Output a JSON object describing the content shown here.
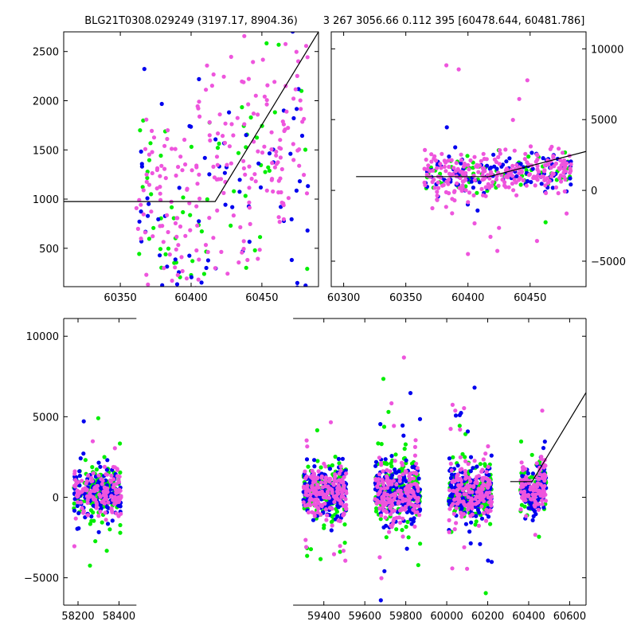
{
  "chart_data": [
    {
      "id": "top-left",
      "type": "scatter",
      "title": "BLG21T0308.029249 (3197.17, 8904.36)",
      "xlim": [
        60310,
        60490
      ],
      "ylim": [
        110,
        2700
      ],
      "xticks": [
        60350,
        60400,
        60450
      ],
      "yticks": [
        500,
        1000,
        1500,
        2000,
        2500
      ],
      "yaxis_side": "left",
      "model_line": [
        [
          60310,
          975
        ],
        [
          60417,
          975
        ],
        [
          60490,
          2700
        ]
      ],
      "series": [
        {
          "color": "#00ee00",
          "seed": 11,
          "count": 70
        },
        {
          "color": "#0000ee",
          "seed": 23,
          "count": 80
        },
        {
          "color": "#ee55dd",
          "seed": 37,
          "count": 230
        }
      ],
      "cloud": {
        "x_range": [
          60360,
          60483
        ],
        "y_base": 975,
        "y_break": 60417,
        "slope": 9.5,
        "spread": 650
      }
    },
    {
      "id": "top-right",
      "type": "scatter",
      "title": "3 267 3056.66 0.112 395 [60478.644, 60481.786]",
      "xlim": [
        60290,
        60495
      ],
      "ylim": [
        -6800,
        11200
      ],
      "xticks": [
        60300,
        60350,
        60400,
        60450
      ],
      "yticks": [
        -5000,
        0,
        5000,
        10000
      ],
      "yaxis_side": "right",
      "model_line": [
        [
          60310,
          975
        ],
        [
          60417,
          975
        ],
        [
          60495,
          2750
        ]
      ],
      "series": [
        {
          "color": "#00ee00",
          "seed": 41,
          "count": 70
        },
        {
          "color": "#0000ee",
          "seed": 53,
          "count": 110
        },
        {
          "color": "#ee55dd",
          "seed": 67,
          "count": 260
        }
      ],
      "cloud": {
        "x_range": [
          60365,
          60483
        ],
        "y_base": 975,
        "y_break": 60417,
        "slope": 9.5,
        "spread": 700
      }
    },
    {
      "id": "bottom",
      "type": "scatter",
      "title": "",
      "xlim": [
        58130,
        60680
      ],
      "ylim": [
        -6700,
        11100
      ],
      "xticks": [
        58200,
        58400,
        59400,
        59600,
        59800,
        60000,
        60200,
        60400,
        60600
      ],
      "yticks": [
        -5000,
        0,
        5000,
        10000
      ],
      "yaxis_side": "left",
      "axis_gap": [
        58485,
        59250
      ],
      "model_line": [
        [
          60310,
          975
        ],
        [
          60417,
          975
        ],
        [
          60680,
          6500
        ]
      ],
      "seasons": [
        {
          "x_range": [
            58180,
            58410
          ],
          "n": 420,
          "sd": 700
        },
        {
          "x_range": [
            59300,
            59510
          ],
          "n": 520,
          "sd": 800
        },
        {
          "x_range": [
            59650,
            59870
          ],
          "n": 560,
          "sd": 900
        },
        {
          "x_range": [
            60010,
            60220
          ],
          "n": 520,
          "sd": 800
        },
        {
          "x_range": [
            60360,
            60485
          ],
          "n": 300,
          "sd": 700
        }
      ],
      "series": [
        {
          "color": "#00ee00",
          "seed": 71
        },
        {
          "color": "#0000ee",
          "seed": 83
        },
        {
          "color": "#ee55dd",
          "seed": 97
        }
      ]
    }
  ]
}
